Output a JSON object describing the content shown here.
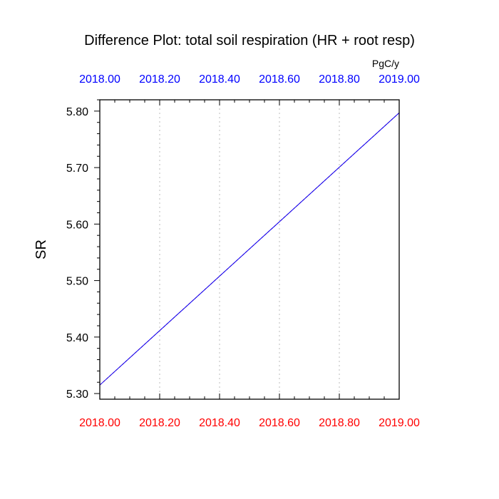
{
  "chart_data": {
    "type": "line",
    "title": "Difference Plot: total soil respiration (HR + root resp)",
    "units": "PgC/y",
    "ylabel": "SR",
    "xlim": [
      2018.0,
      2019.0
    ],
    "ylim": [
      5.29,
      5.82
    ],
    "x_ticks": [
      "2018.00",
      "2018.20",
      "2018.40",
      "2018.60",
      "2018.80",
      "2019.00"
    ],
    "x_tick_values": [
      2018.0,
      2018.2,
      2018.4,
      2018.6,
      2018.8,
      2019.0
    ],
    "y_ticks": [
      "5.30",
      "5.40",
      "5.50",
      "5.60",
      "5.70",
      "5.80"
    ],
    "y_tick_values": [
      5.3,
      5.4,
      5.5,
      5.6,
      5.7,
      5.8
    ],
    "grid": "vertical dotted",
    "series": [
      {
        "x": [
          2018.0,
          2019.0
        ],
        "y": [
          5.315,
          5.797
        ],
        "color": "#ff0000",
        "style": "dashed"
      },
      {
        "x": [
          2018.0,
          2019.0
        ],
        "y": [
          5.315,
          5.797
        ],
        "color": "#0000ff",
        "style": "solid"
      }
    ],
    "colors": {
      "top_axis_labels": "#0000ff",
      "bottom_axis_labels": "#ff0000",
      "text": "#000000",
      "grid": "#bbbbbb"
    }
  }
}
